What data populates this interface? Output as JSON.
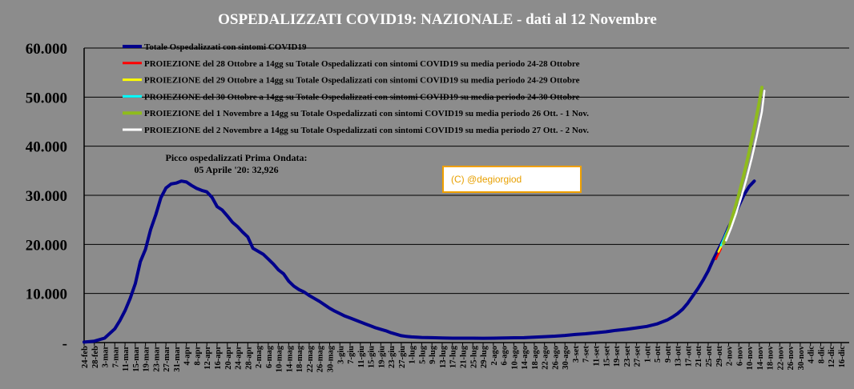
{
  "chart_data": {
    "type": "line",
    "title": "OSPEDALIZZATI COVID19: NAZIONALE - dati al 12 Novembre",
    "ylim": [
      0,
      60000
    ],
    "yticks": [
      {
        "value": 0,
        "label": "-"
      },
      {
        "value": 10000,
        "label": "10.000"
      },
      {
        "value": 20000,
        "label": "20.000"
      },
      {
        "value": 30000,
        "label": "30.000"
      },
      {
        "value": 40000,
        "label": "40.000"
      },
      {
        "value": 50000,
        "label": "50.000"
      },
      {
        "value": 60000,
        "label": "60.000"
      }
    ],
    "grid": "horizontal",
    "legend_position": "top-left",
    "xticks": [
      "24-feb",
      "28-feb",
      "3-mar",
      "7-mar",
      "11-mar",
      "15-mar",
      "19-mar",
      "23-mar",
      "27-mar",
      "31-mar",
      "4-apr",
      "8-apr",
      "12-apr",
      "16-apr",
      "20-apr",
      "24-apr",
      "28-apr",
      "2-mag",
      "6-mag",
      "10-mag",
      "14-mag",
      "18-mag",
      "22-mag",
      "26-mag",
      "30-mag",
      "3-giu",
      "7-giu",
      "11-giu",
      "15-giu",
      "19-giu",
      "23-giu",
      "27-giu",
      "1-lug",
      "5-lug",
      "9-lug",
      "13-lug",
      "17-lug",
      "21-lug",
      "25-lug",
      "29-lug",
      "2-ago",
      "6-ago",
      "10-ago",
      "14-ago",
      "18-ago",
      "22-ago",
      "26-ago",
      "30-ago",
      "3-set",
      "7-set",
      "11-set",
      "15-set",
      "19-set",
      "23-set",
      "27-set",
      "1-ott",
      "5-ott",
      "9-ott",
      "13-ott",
      "17-ott",
      "21-ott",
      "25-ott",
      "29-ott",
      "2-nov",
      "6-nov",
      "10-nov",
      "14-nov",
      "18-nov",
      "22-nov",
      "26-nov",
      "30-nov",
      "4-dic",
      "8-dic",
      "12-dic",
      "16-dic"
    ],
    "series": [
      {
        "name": "Totale Ospedalizzati con sintomi COVID19",
        "color": "#00008b",
        "width": 4,
        "x": [
          "24-feb",
          "28-feb",
          "3-mar",
          "7-mar",
          "9-mar",
          "11-mar",
          "13-mar",
          "15-mar",
          "17-mar",
          "19-mar",
          "21-mar",
          "23-mar",
          "25-mar",
          "27-mar",
          "29-mar",
          "31-mar",
          "2-apr",
          "4-apr",
          "6-apr",
          "8-apr",
          "10-apr",
          "12-apr",
          "14-apr",
          "16-apr",
          "18-apr",
          "20-apr",
          "22-apr",
          "24-apr",
          "26-apr",
          "28-apr",
          "30-apr",
          "2-mag",
          "4-mag",
          "6-mag",
          "8-mag",
          "10-mag",
          "12-mag",
          "14-mag",
          "16-mag",
          "18-mag",
          "20-mag",
          "22-mag",
          "24-mag",
          "26-mag",
          "28-mag",
          "30-mag",
          "1-giu",
          "3-giu",
          "5-giu",
          "7-giu",
          "9-giu",
          "11-giu",
          "13-giu",
          "15-giu",
          "17-giu",
          "19-giu",
          "21-giu",
          "23-giu",
          "25-giu",
          "27-giu",
          "29-giu",
          "1-lug",
          "5-lug",
          "9-lug",
          "13-lug",
          "17-lug",
          "21-lug",
          "25-lug",
          "29-lug",
          "2-ago",
          "6-ago",
          "10-ago",
          "14-ago",
          "18-ago",
          "22-ago",
          "26-ago",
          "30-ago",
          "3-set",
          "7-set",
          "11-set",
          "15-set",
          "19-set",
          "23-set",
          "27-set",
          "1-ott",
          "5-ott",
          "7-ott",
          "9-ott",
          "11-ott",
          "13-ott",
          "15-ott",
          "17-ott",
          "19-ott",
          "21-ott",
          "23-ott",
          "25-ott",
          "27-ott",
          "29-ott",
          "31-ott",
          "2-nov",
          "4-nov",
          "6-nov",
          "8-nov",
          "10-nov",
          "12-nov"
        ],
        "y": [
          100,
          300,
          900,
          2800,
          4500,
          6500,
          9000,
          12000,
          16500,
          19000,
          23000,
          26000,
          29500,
          31500,
          32300,
          32500,
          32900,
          32700,
          32000,
          31400,
          31000,
          30700,
          29600,
          27700,
          27000,
          25800,
          24500,
          23600,
          22500,
          21500,
          19200,
          18600,
          18000,
          17000,
          16000,
          14800,
          14000,
          12500,
          11500,
          10800,
          10300,
          9600,
          9000,
          8400,
          7700,
          7000,
          6400,
          5900,
          5400,
          5000,
          4600,
          4200,
          3800,
          3400,
          3000,
          2700,
          2400,
          2000,
          1700,
          1400,
          1250,
          1150,
          1050,
          1000,
          950,
          900,
          900,
          900,
          880,
          900,
          950,
          980,
          1000,
          1100,
          1200,
          1300,
          1450,
          1650,
          1800,
          2000,
          2200,
          2500,
          2700,
          3000,
          3300,
          3800,
          4200,
          4600,
          5200,
          5900,
          6800,
          8000,
          9500,
          11000,
          12700,
          14600,
          16900,
          19000,
          21000,
          23500,
          25600,
          27900,
          30100,
          31800,
          32900
        ]
      },
      {
        "name": "PROIEZIONE del 28 Ottobre a 14gg su Totale Ospedalizzati con sintomi COVID19 su media periodo 24-28 Ottobre",
        "color": "#ff0000",
        "width": 2.5,
        "x": [
          "28-ott",
          "29-ott",
          "30-ott"
        ],
        "y": [
          17000,
          18100,
          19100
        ]
      },
      {
        "name": "PROIEZIONE del 29 Ottobre a 14gg su Totale Ospedalizzati con sintomi COVID19 su media periodo 24-29 Ottobre",
        "color": "#ffff00",
        "width": 2.5,
        "x": [
          "29-ott",
          "30-ott",
          "31-ott"
        ],
        "y": [
          18500,
          19600,
          20600
        ]
      },
      {
        "name": "PROIEZIONE del 30 Ottobre a 14gg su Totale Ospedalizzati con sintomi COVID19 su media periodo 24-30 Ottobre",
        "color": "#00ffff",
        "width": 2.5,
        "x": [
          "30-ott",
          "31-ott",
          "1-nov",
          "2-nov"
        ],
        "y": [
          19800,
          21000,
          22200,
          23400
        ]
      },
      {
        "name": "PROIEZIONE del 1 Novembre a 14gg su Totale Ospedalizzati con sintomi COVID19 su media periodo 26 Ott. - 1 Nov.",
        "color": "#8fbc1c",
        "width": 4,
        "x": [
          "31-ott",
          "2-nov",
          "4-nov",
          "6-nov",
          "8-nov",
          "10-nov",
          "12-nov",
          "14-nov",
          "15-nov"
        ],
        "y": [
          20200,
          23000,
          26500,
          30200,
          34300,
          38800,
          43700,
          49000,
          52000
        ]
      },
      {
        "name": "PROIEZIONE del 2 Novembre a 14gg su Totale Ospedalizzati con sintomi COVID19 su media periodo 27 Ott. - 2 Nov.",
        "color": "#ffffff",
        "width": 2.5,
        "x": [
          "1-nov",
          "3-nov",
          "5-nov",
          "7-nov",
          "9-nov",
          "11-nov",
          "13-nov",
          "15-nov",
          "16-nov"
        ],
        "y": [
          20800,
          23400,
          26400,
          29700,
          33400,
          37500,
          42000,
          47000,
          51300
        ]
      }
    ],
    "annotations": [
      {
        "text": "Picco ospedalizzati Prima Ondata:",
        "line2": "05 Aprile '20:  32,926"
      }
    ],
    "credit": "(C) @degiorgiod"
  }
}
